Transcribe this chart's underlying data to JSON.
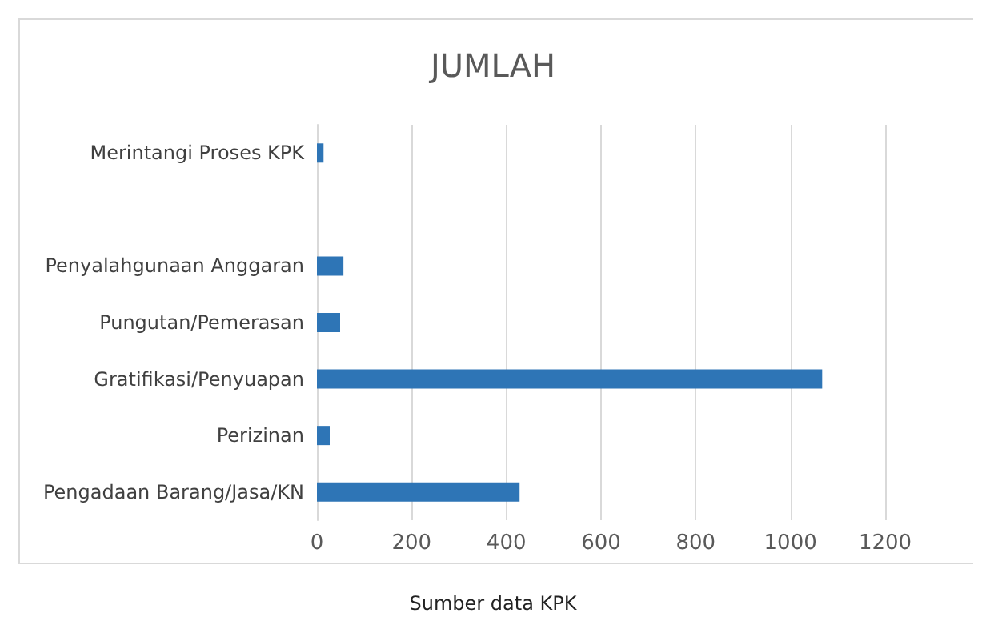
{
  "chart_data": {
    "type": "bar",
    "orientation": "horizontal",
    "title": "JUMLAH",
    "categories": [
      "Merintangi Proses KPK",
      null,
      "Penyalahgunaan Anggaran",
      "Pungutan/Pemerasan",
      "Gratifikasi/Penyuapan",
      "Perizinan",
      "Pengadaan Barang/Jasa/KN"
    ],
    "values": [
      14,
      null,
      56,
      49,
      1067,
      27,
      428
    ],
    "color": "#2e75b6",
    "xlim": [
      0,
      1200
    ],
    "xticks": [
      0,
      200,
      400,
      600,
      800,
      1000,
      1200
    ],
    "grid": "x",
    "annotations": [
      "Sumber data KPK"
    ]
  }
}
